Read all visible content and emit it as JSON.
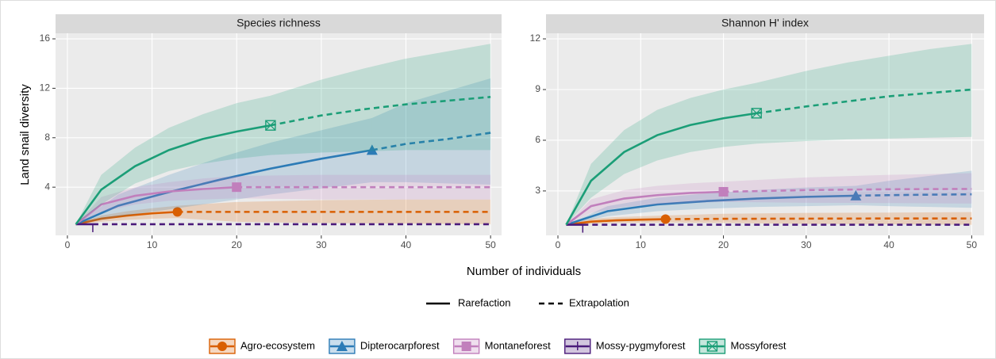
{
  "chart_data": [
    {
      "type": "line",
      "title": "Species richness",
      "xlim": [
        -1.4,
        51.3
      ],
      "xticks": [
        0,
        10,
        20,
        30,
        40,
        50
      ],
      "ylim": [
        0.1,
        16.45
      ],
      "yticks": [
        4,
        8,
        12,
        16
      ],
      "grid": true,
      "series": [
        {
          "name": "Agro-ecosystem",
          "color": "#d95f02",
          "marker": "circle",
          "rarefaction": {
            "x": [
              1,
              4,
              7,
              10,
              13
            ],
            "values": [
              1,
              1.45,
              1.7,
              1.88,
              2
            ],
            "lower": [
              1,
              1.2,
              1.35,
              1.45,
              1.5
            ],
            "upper": [
              1,
              1.7,
              2.05,
              2.3,
              2.5
            ]
          },
          "extrapolation": {
            "x": [
              13,
              20,
              30,
              40,
              50
            ],
            "values": [
              2,
              2,
              2,
              2,
              2
            ],
            "lower": [
              1.5,
              1.2,
              1.1,
              1.05,
              1.0
            ],
            "upper": [
              2.5,
              2.8,
              2.95,
              3,
              3
            ]
          }
        },
        {
          "name": "Dipterocarpforest",
          "color": "#2c7bb6",
          "marker": "triangle",
          "rarefaction": {
            "x": [
              1,
              6,
              12,
              18,
              24,
              30,
              36
            ],
            "values": [
              1,
              2.5,
              3.6,
              4.6,
              5.5,
              6.3,
              7
            ],
            "lower": [
              1,
              1.6,
              2.2,
              2.8,
              3.4,
              3.9,
              4.4
            ],
            "upper": [
              1,
              3.4,
              5,
              6.4,
              7.6,
              8.6,
              9.6
            ]
          },
          "extrapolation": {
            "x": [
              36,
              40,
              45,
              50
            ],
            "values": [
              7,
              7.5,
              7.9,
              8.4
            ],
            "lower": [
              4.4,
              4.4,
              4.3,
              4.2
            ],
            "upper": [
              9.6,
              10.8,
              11.8,
              12.8
            ]
          }
        },
        {
          "name": "Montaneforest",
          "color": "#c17fbc",
          "marker": "square",
          "rarefaction": {
            "x": [
              1,
              4,
              8,
              12,
              16,
              20
            ],
            "values": [
              1,
              2.6,
              3.3,
              3.65,
              3.85,
              4
            ],
            "lower": [
              1,
              2,
              2.6,
              2.9,
              3,
              3.1
            ],
            "upper": [
              1,
              3.2,
              4,
              4.4,
              4.7,
              4.9
            ]
          },
          "extrapolation": {
            "x": [
              20,
              30,
              40,
              50
            ],
            "values": [
              4,
              4,
              4,
              4
            ],
            "lower": [
              3.1,
              3,
              3,
              3
            ],
            "upper": [
              4.9,
              5,
              5,
              5
            ]
          }
        },
        {
          "name": "Mossy-pygmyforest",
          "color": "#4a1a7a",
          "marker": "bar",
          "rarefaction": {
            "x": [
              1,
              3
            ],
            "values": [
              1,
              1
            ],
            "lower": [
              1,
              1
            ],
            "upper": [
              1,
              1
            ]
          },
          "extrapolation": {
            "x": [
              3,
              10,
              20,
              30,
              40,
              50
            ],
            "values": [
              1,
              1,
              1,
              1,
              1,
              1
            ],
            "lower": [
              1,
              1,
              1,
              1,
              1,
              1
            ],
            "upper": [
              1,
              1,
              1,
              1,
              1,
              1
            ]
          }
        },
        {
          "name": "Mossyforest",
          "color": "#1b9e77",
          "marker": "square-cross",
          "rarefaction": {
            "x": [
              1,
              4,
              8,
              12,
              16,
              20,
              24
            ],
            "values": [
              1,
              3.8,
              5.7,
              7,
              7.9,
              8.5,
              9
            ],
            "lower": [
              1,
              2.6,
              4.3,
              5.3,
              5.9,
              6.3,
              6.6
            ],
            "upper": [
              1,
              5,
              7.2,
              8.8,
              9.9,
              10.8,
              11.4
            ]
          },
          "extrapolation": {
            "x": [
              24,
              30,
              35,
              40,
              45,
              50
            ],
            "values": [
              9,
              9.8,
              10.3,
              10.7,
              11,
              11.3
            ],
            "lower": [
              6.6,
              6.8,
              6.9,
              7,
              7,
              7
            ],
            "upper": [
              11.4,
              12.7,
              13.6,
              14.4,
              15,
              15.6
            ]
          }
        }
      ]
    },
    {
      "type": "line",
      "title": "Shannon H' index",
      "xlim": [
        -1.44,
        51.5
      ],
      "xticks": [
        0,
        10,
        20,
        30,
        40,
        50
      ],
      "ylim": [
        0.37,
        12.33
      ],
      "yticks": [
        3,
        6,
        9,
        12
      ],
      "grid": true,
      "series": [
        {
          "name": "Agro-ecosystem",
          "color": "#d95f02",
          "marker": "circle",
          "rarefaction": {
            "x": [
              1,
              4,
              7,
              10,
              13
            ],
            "values": [
              1,
              1.18,
              1.26,
              1.3,
              1.33
            ],
            "lower": [
              1,
              1.05,
              1.1,
              1.12,
              1.13
            ],
            "upper": [
              1,
              1.35,
              1.45,
              1.5,
              1.55
            ]
          },
          "extrapolation": {
            "x": [
              13,
              20,
              30,
              40,
              50
            ],
            "values": [
              1.33,
              1.35,
              1.36,
              1.37,
              1.37
            ],
            "lower": [
              1.13,
              1.1,
              1.05,
              1.03,
              1.0
            ],
            "upper": [
              1.55,
              1.65,
              1.7,
              1.72,
              1.75
            ]
          }
        },
        {
          "name": "Dipterocarpforest",
          "color": "#2c7bb6",
          "marker": "triangle",
          "rarefaction": {
            "x": [
              1,
              6,
              12,
              18,
              24,
              30,
              36
            ],
            "values": [
              1,
              1.8,
              2.2,
              2.4,
              2.55,
              2.65,
              2.72
            ],
            "lower": [
              1,
              1.5,
              1.8,
              1.95,
              2.05,
              2.1,
              2.15
            ],
            "upper": [
              1,
              2.1,
              2.6,
              2.85,
              3.05,
              3.2,
              3.3
            ]
          },
          "extrapolation": {
            "x": [
              36,
              40,
              45,
              50
            ],
            "values": [
              2.72,
              2.75,
              2.78,
              2.8
            ],
            "lower": [
              2.15,
              2.1,
              2.05,
              2.0
            ],
            "upper": [
              3.3,
              3.6,
              3.9,
              4.2
            ]
          }
        },
        {
          "name": "Montaneforest",
          "color": "#c17fbc",
          "marker": "square",
          "rarefaction": {
            "x": [
              1,
              4,
              8,
              12,
              16,
              20
            ],
            "values": [
              1,
              2.1,
              2.55,
              2.75,
              2.88,
              2.95
            ],
            "lower": [
              1,
              1.7,
              2.05,
              2.2,
              2.3,
              2.35
            ],
            "upper": [
              1,
              2.5,
              3.05,
              3.3,
              3.45,
              3.55
            ]
          },
          "extrapolation": {
            "x": [
              20,
              30,
              40,
              50
            ],
            "values": [
              2.95,
              3.05,
              3.1,
              3.12
            ],
            "lower": [
              2.35,
              2.3,
              2.28,
              2.25
            ],
            "upper": [
              3.55,
              3.8,
              3.95,
              4.05
            ]
          }
        },
        {
          "name": "Mossy-pygmyforest",
          "color": "#4a1a7a",
          "marker": "bar",
          "rarefaction": {
            "x": [
              1,
              3
            ],
            "values": [
              1,
              1
            ],
            "lower": [
              1,
              1
            ],
            "upper": [
              1,
              1
            ]
          },
          "extrapolation": {
            "x": [
              3,
              10,
              20,
              30,
              40,
              50
            ],
            "values": [
              1,
              1,
              1,
              1,
              1,
              1
            ],
            "lower": [
              1,
              1,
              1,
              1,
              1,
              1
            ],
            "upper": [
              1,
              1,
              1,
              1,
              1,
              1
            ]
          }
        },
        {
          "name": "Mossyforest",
          "color": "#1b9e77",
          "marker": "square-cross",
          "rarefaction": {
            "x": [
              1,
              4,
              8,
              12,
              16,
              20,
              24
            ],
            "values": [
              1,
              3.6,
              5.3,
              6.3,
              6.9,
              7.3,
              7.6
            ],
            "lower": [
              1,
              2.6,
              4,
              4.8,
              5.3,
              5.6,
              5.8
            ],
            "upper": [
              1,
              4.6,
              6.6,
              7.8,
              8.5,
              9,
              9.4
            ]
          },
          "extrapolation": {
            "x": [
              24,
              30,
              35,
              40,
              45,
              50
            ],
            "values": [
              7.6,
              8,
              8.3,
              8.6,
              8.8,
              9
            ],
            "lower": [
              5.8,
              5.95,
              6.05,
              6.1,
              6.15,
              6.2
            ],
            "upper": [
              9.4,
              10.1,
              10.6,
              11,
              11.4,
              11.7
            ]
          }
        }
      ]
    }
  ],
  "x_label": "Number of individuals",
  "y_label": "Land snail diversity",
  "linetype_legend": [
    "Rarefaction",
    "Extrapolation"
  ]
}
